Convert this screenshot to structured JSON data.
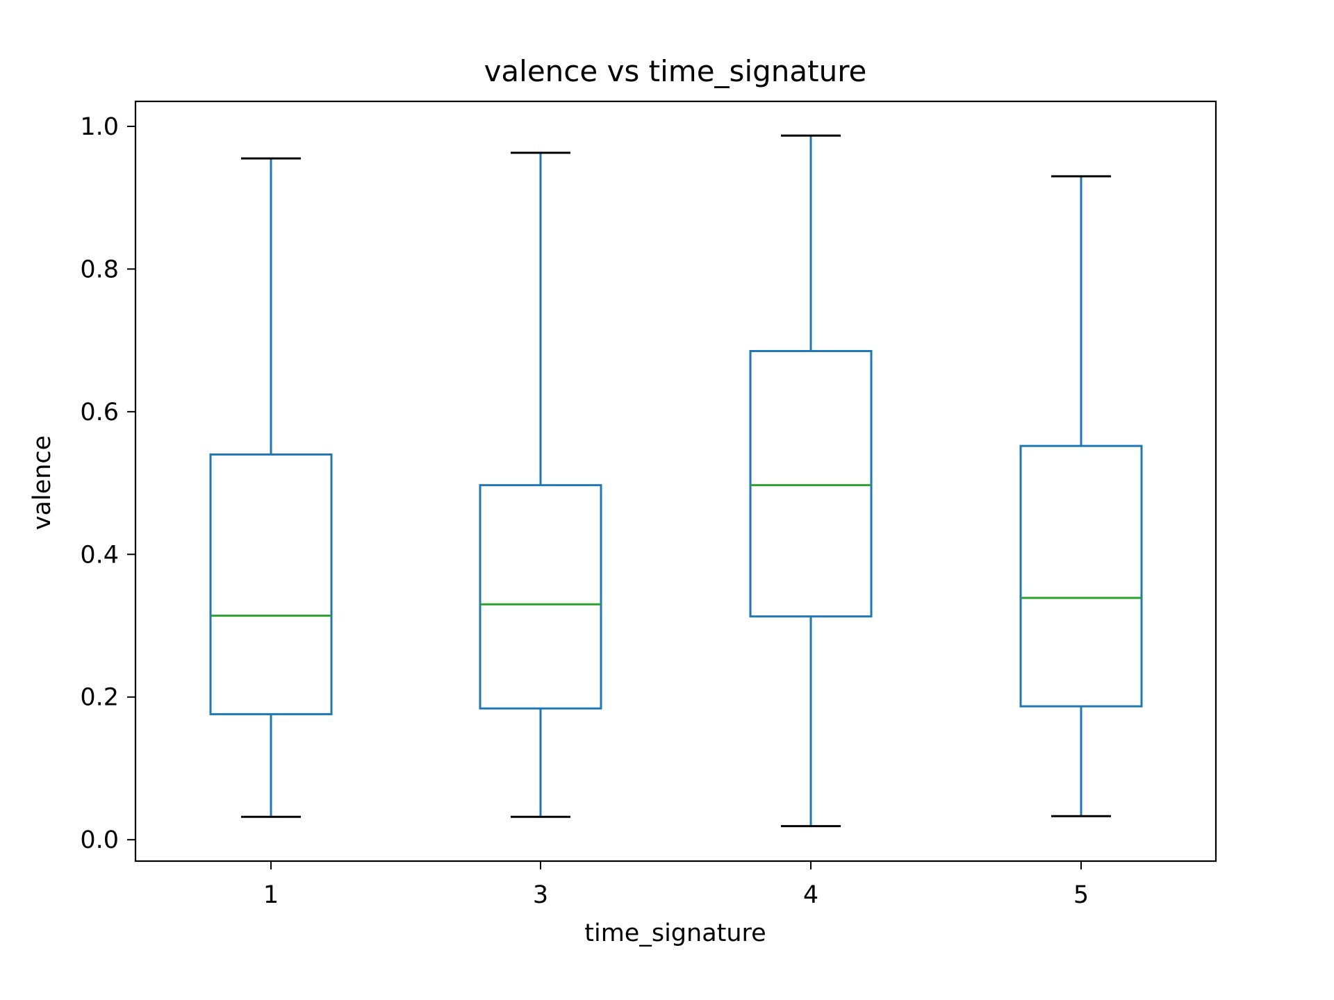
{
  "chart_data": {
    "type": "box",
    "title": "valence vs time_signature",
    "xlabel": "time_signature",
    "ylabel": "valence",
    "ylim": [
      -0.03,
      1.035
    ],
    "yticks": [
      0.0,
      0.2,
      0.4,
      0.6,
      0.8,
      1.0
    ],
    "ytick_labels": [
      "0.0",
      "0.2",
      "0.4",
      "0.6",
      "0.8",
      "1.0"
    ],
    "categories": [
      "1",
      "3",
      "4",
      "5"
    ],
    "boxes": [
      {
        "category": "1",
        "whisker_low": 0.032,
        "q1": 0.176,
        "median": 0.314,
        "q3": 0.54,
        "whisker_high": 0.955
      },
      {
        "category": "3",
        "whisker_low": 0.032,
        "q1": 0.184,
        "median": 0.33,
        "q3": 0.497,
        "whisker_high": 0.963
      },
      {
        "category": "4",
        "whisker_low": 0.019,
        "q1": 0.313,
        "median": 0.497,
        "q3": 0.685,
        "whisker_high": 0.987
      },
      {
        "category": "5",
        "whisker_low": 0.033,
        "q1": 0.187,
        "median": 0.339,
        "q3": 0.552,
        "whisker_high": 0.93
      }
    ],
    "grid": false,
    "colors": {
      "box": "#1f77b4",
      "median": "#2ca02c",
      "cap": "#000000",
      "axes": "#000000"
    }
  }
}
